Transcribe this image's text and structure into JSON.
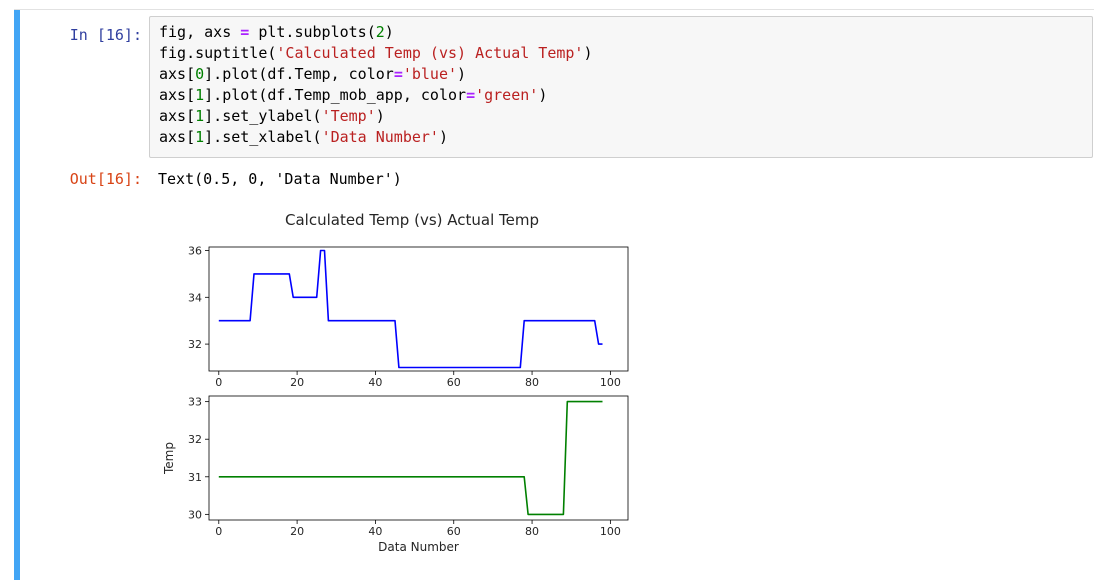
{
  "cell": {
    "in_prompt": "In [16]:",
    "out_prompt": "Out[16]:",
    "code_lines": [
      [
        "fig, axs ",
        {
          "op": "="
        },
        " plt.subplots(",
        {
          "num": "2"
        },
        ")"
      ],
      [
        "fig.suptitle(",
        {
          "str": "'Calculated Temp (vs) Actual Temp'"
        },
        ")"
      ],
      [
        "axs[",
        {
          "num": "0"
        },
        "].plot(df.Temp, color",
        {
          "op": "="
        },
        {
          "str": "'blue'"
        },
        ")"
      ],
      [
        "axs[",
        {
          "num": "1"
        },
        "].plot(df.Temp_mob_app, color",
        {
          "op": "="
        },
        {
          "str": "'green'"
        },
        ")"
      ],
      [
        "axs[",
        {
          "num": "1"
        },
        "].set_ylabel(",
        {
          "str": "'Temp'"
        },
        ")"
      ],
      [
        "axs[",
        {
          "num": "1"
        },
        "].set_xlabel(",
        {
          "str": "'Data Number'"
        },
        ")"
      ]
    ],
    "output_text": "Text(0.5, 0, 'Data Number')"
  },
  "chart_data": {
    "title": "Calculated Temp (vs) Actual Temp",
    "subplots": [
      {
        "type": "line",
        "color": "#0000ff",
        "xlabel": "",
        "ylabel": "",
        "xlim": [
          -2.5,
          104.5
        ],
        "ylim": [
          30.85,
          36.15
        ],
        "xticks": [
          0,
          20,
          40,
          60,
          80,
          100
        ],
        "yticks": [
          32,
          34,
          36
        ],
        "x": [
          0,
          8,
          9,
          18,
          19,
          25,
          26,
          27,
          28,
          45,
          46,
          77,
          78,
          96,
          97,
          98
        ],
        "y": [
          33,
          33,
          35,
          35,
          34,
          34,
          36,
          36,
          33,
          33,
          31,
          31,
          33,
          33,
          32,
          32
        ]
      },
      {
        "type": "line",
        "color": "#008000",
        "xlabel": "Data Number",
        "ylabel": "Temp",
        "xlim": [
          -2.5,
          104.5
        ],
        "ylim": [
          29.85,
          33.15
        ],
        "xticks": [
          0,
          20,
          40,
          60,
          80,
          100
        ],
        "yticks": [
          30,
          31,
          32,
          33
        ],
        "x": [
          0,
          78,
          79,
          88,
          89,
          98
        ],
        "y": [
          31,
          31,
          30,
          30,
          33,
          33
        ]
      }
    ]
  }
}
